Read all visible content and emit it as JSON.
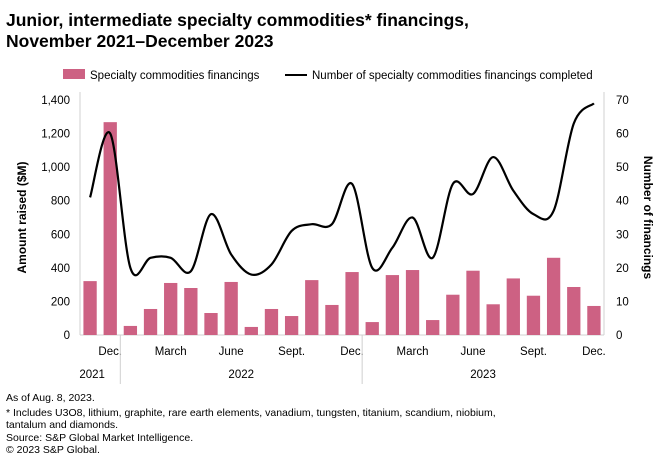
{
  "title_lines": [
    "Junior, intermediate specialty commodities* financings,",
    "November 2021–December 2023"
  ],
  "notes": {
    "as_of": "As of Aug. 8, 2023.",
    "footnote": "* Includes U3O8, lithium, graphite, rare earth elements, vanadium, tungsten, titanium, scandium, niobium,",
    "footnote2": "tantalum and diamonds.",
    "source": "Source: S&P Global Market Intelligence.",
    "copyright": "© 2023 S&P Global."
  },
  "chart_data": {
    "type": "bar+line",
    "categories": [
      "Nov 2021",
      "Dec 2021",
      "Jan 2022",
      "Feb 2022",
      "Mar 2022",
      "Apr 2022",
      "May 2022",
      "Jun 2022",
      "Jul 2022",
      "Aug 2022",
      "Sep 2022",
      "Oct 2022",
      "Nov 2022",
      "Dec 2022",
      "Jan 2023",
      "Feb 2023",
      "Mar 2023",
      "Apr 2023",
      "May 2023",
      "Jun 2023",
      "Jul 2023",
      "Aug 2023",
      "Sep 2023",
      "Oct 2023",
      "Nov 2023",
      "Dec 2023"
    ],
    "tick_labels": [
      "",
      "Dec.",
      "",
      "",
      "March",
      "",
      "",
      "June",
      "",
      "",
      "Sept.",
      "",
      "",
      "Dec.",
      "",
      "",
      "March",
      "",
      "",
      "June",
      "",
      "",
      "Sept.",
      "",
      "",
      "Dec."
    ],
    "year_labels": [
      {
        "label": "2021",
        "from": 0,
        "to": 1
      },
      {
        "label": "2022",
        "from": 2,
        "to": 13
      },
      {
        "label": "2023",
        "from": 14,
        "to": 25
      }
    ],
    "series": [
      {
        "name": "Specialty commodities financings",
        "type": "bar",
        "axis": "left",
        "color": "#cd6183",
        "values": [
          321,
          1268,
          54,
          155,
          310,
          280,
          131,
          316,
          48,
          155,
          113,
          327,
          179,
          375,
          77,
          357,
          387,
          89,
          240,
          383,
          183,
          337,
          234,
          460,
          286,
          173
        ]
      },
      {
        "name": "Number of specialty commodities financings completed",
        "type": "line",
        "axis": "right",
        "color": "#000000",
        "values": [
          41,
          60,
          20,
          23,
          23,
          19,
          36,
          24,
          18,
          21,
          31,
          33,
          33,
          45,
          20,
          26,
          35,
          23,
          45,
          42,
          53,
          43,
          36,
          37,
          63,
          69
        ]
      }
    ],
    "ylabel": "Amount raised ($M)",
    "ylim": [
      0,
      1400
    ],
    "yticks": [
      0,
      200,
      400,
      600,
      800,
      "1,000",
      "1,200",
      "1,400"
    ],
    "y2label": "Number of financings",
    "y2lim": [
      0,
      70
    ],
    "y2ticks": [
      0,
      10,
      20,
      30,
      40,
      50,
      60,
      70
    ],
    "legend": "top",
    "grid": false
  }
}
